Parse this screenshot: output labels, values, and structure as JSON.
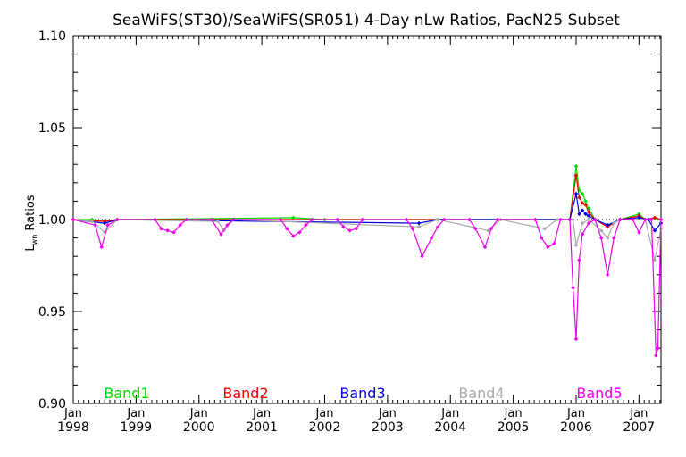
{
  "chart_data": {
    "type": "line",
    "title": "SeaWiFS(ST30)/SeaWiFS(SR051) 4-Day nLw Ratios, PacN25 Subset",
    "ylabel_main": "L",
    "ylabel_sub": "wn",
    "ylabel_rest": " Ratios",
    "xlim": [
      1998.0,
      2007.35
    ],
    "ylim": [
      0.9,
      1.1
    ],
    "y_ticks": [
      0.9,
      0.95,
      1.0,
      1.05,
      1.1
    ],
    "y_tick_labels": [
      "0.90",
      "0.95",
      "1.00",
      "1.05",
      "1.10"
    ],
    "x_ticks": [
      {
        "pos": 1998,
        "month": "Jan",
        "year": "1998"
      },
      {
        "pos": 1999,
        "month": "Jan",
        "year": "1999"
      },
      {
        "pos": 2000,
        "month": "Jan",
        "year": "2000"
      },
      {
        "pos": 2001,
        "month": "Jan",
        "year": "2001"
      },
      {
        "pos": 2002,
        "month": "Jan",
        "year": "2002"
      },
      {
        "pos": 2003,
        "month": "Jan",
        "year": "2003"
      },
      {
        "pos": 2004,
        "month": "Jan",
        "year": "2004"
      },
      {
        "pos": 2005,
        "month": "Jan",
        "year": "2005"
      },
      {
        "pos": 2006,
        "month": "Jan",
        "year": "2006"
      },
      {
        "pos": 2007,
        "month": "Jan",
        "year": "2007"
      }
    ],
    "reference_line": 1.0,
    "legend": [
      {
        "label": "Band1",
        "color": "#00dd00"
      },
      {
        "label": "Band2",
        "color": "#ee0000"
      },
      {
        "label": "Band3",
        "color": "#0000dd"
      },
      {
        "label": "Band4",
        "color": "#aaaaaa"
      },
      {
        "label": "Band5",
        "color": "#ee00ee"
      }
    ],
    "series": [
      {
        "name": "Band1",
        "color": "#00dd00",
        "points": [
          [
            1998.0,
            1.0
          ],
          [
            1998.3,
            1.0
          ],
          [
            1998.5,
            0.999
          ],
          [
            1998.7,
            1.0
          ],
          [
            2001.5,
            1.001
          ],
          [
            2002.0,
            1.0
          ],
          [
            2005.9,
            1.0
          ],
          [
            2006.0,
            1.029
          ],
          [
            2006.05,
            1.016
          ],
          [
            2006.1,
            1.014
          ],
          [
            2006.15,
            1.01
          ],
          [
            2006.2,
            1.006
          ],
          [
            2006.3,
            1.0
          ],
          [
            2006.5,
            0.997
          ],
          [
            2006.7,
            1.0
          ],
          [
            2007.0,
            1.003
          ],
          [
            2007.1,
            1.0
          ],
          [
            2007.35,
            1.0
          ]
        ]
      },
      {
        "name": "Band2",
        "color": "#ee0000",
        "points": [
          [
            1998.0,
            1.0
          ],
          [
            1998.5,
            0.999
          ],
          [
            1998.7,
            1.0
          ],
          [
            2005.9,
            1.0
          ],
          [
            2006.0,
            1.024
          ],
          [
            2006.05,
            1.012
          ],
          [
            2006.1,
            1.009
          ],
          [
            2006.15,
            1.008
          ],
          [
            2006.2,
            1.004
          ],
          [
            2006.3,
            1.0
          ],
          [
            2006.5,
            0.996
          ],
          [
            2006.7,
            1.0
          ],
          [
            2007.0,
            1.002
          ],
          [
            2007.1,
            1.0
          ],
          [
            2007.25,
            1.001
          ],
          [
            2007.35,
            1.0
          ]
        ]
      },
      {
        "name": "Band3",
        "color": "#0000dd",
        "points": [
          [
            1998.0,
            1.0
          ],
          [
            1998.5,
            0.998
          ],
          [
            1998.7,
            1.0
          ],
          [
            2003.5,
            0.998
          ],
          [
            2003.8,
            1.0
          ],
          [
            2005.9,
            1.0
          ],
          [
            2006.0,
            1.014
          ],
          [
            2006.05,
            1.003
          ],
          [
            2006.1,
            1.005
          ],
          [
            2006.15,
            1.003
          ],
          [
            2006.2,
            1.002
          ],
          [
            2006.3,
            1.0
          ],
          [
            2006.5,
            0.997
          ],
          [
            2006.7,
            1.0
          ],
          [
            2007.0,
            1.001
          ],
          [
            2007.15,
            1.0
          ],
          [
            2007.25,
            0.994
          ],
          [
            2007.35,
            0.998
          ]
        ]
      },
      {
        "name": "Band4",
        "color": "#aaaaaa",
        "points": [
          [
            1998.0,
            1.0
          ],
          [
            1998.3,
            0.999
          ],
          [
            1998.5,
            0.993
          ],
          [
            1998.7,
            1.0
          ],
          [
            2000.3,
            0.999
          ],
          [
            2000.4,
            0.994
          ],
          [
            2000.55,
            1.0
          ],
          [
            2003.5,
            0.996
          ],
          [
            2003.8,
            1.0
          ],
          [
            2004.6,
            0.994
          ],
          [
            2004.8,
            1.0
          ],
          [
            2005.5,
            0.995
          ],
          [
            2005.7,
            1.0
          ],
          [
            2005.95,
            1.0
          ],
          [
            2006.0,
            0.986
          ],
          [
            2006.1,
            0.998
          ],
          [
            2006.2,
            1.0
          ],
          [
            2006.4,
            0.994
          ],
          [
            2006.5,
            0.99
          ],
          [
            2006.6,
            0.998
          ],
          [
            2006.7,
            1.0
          ],
          [
            2007.1,
            1.0
          ],
          [
            2007.25,
            0.978
          ],
          [
            2007.35,
            0.995
          ]
        ]
      },
      {
        "name": "Band5",
        "color": "#ee00ee",
        "points": [
          [
            1998.0,
            1.0
          ],
          [
            1998.35,
            0.997
          ],
          [
            1998.45,
            0.985
          ],
          [
            1998.55,
            0.997
          ],
          [
            1998.7,
            1.0
          ],
          [
            1999.3,
            1.0
          ],
          [
            1999.4,
            0.995
          ],
          [
            1999.5,
            0.994
          ],
          [
            1999.6,
            0.993
          ],
          [
            1999.7,
            0.997
          ],
          [
            1999.8,
            1.0
          ],
          [
            2000.2,
            1.0
          ],
          [
            2000.35,
            0.992
          ],
          [
            2000.45,
            0.997
          ],
          [
            2000.55,
            1.0
          ],
          [
            2001.3,
            1.0
          ],
          [
            2001.4,
            0.995
          ],
          [
            2001.5,
            0.991
          ],
          [
            2001.6,
            0.993
          ],
          [
            2001.7,
            0.997
          ],
          [
            2001.8,
            1.0
          ],
          [
            2002.2,
            1.0
          ],
          [
            2002.3,
            0.996
          ],
          [
            2002.4,
            0.994
          ],
          [
            2002.5,
            0.995
          ],
          [
            2002.6,
            1.0
          ],
          [
            2003.3,
            1.0
          ],
          [
            2003.4,
            0.995
          ],
          [
            2003.55,
            0.98
          ],
          [
            2003.7,
            0.99
          ],
          [
            2003.8,
            0.996
          ],
          [
            2003.9,
            1.0
          ],
          [
            2004.3,
            1.0
          ],
          [
            2004.4,
            0.995
          ],
          [
            2004.55,
            0.985
          ],
          [
            2004.65,
            0.995
          ],
          [
            2004.75,
            1.0
          ],
          [
            2005.35,
            1.0
          ],
          [
            2005.45,
            0.99
          ],
          [
            2005.55,
            0.985
          ],
          [
            2005.65,
            0.987
          ],
          [
            2005.75,
            1.0
          ],
          [
            2005.9,
            1.0
          ],
          [
            2005.95,
            0.963
          ],
          [
            2006.0,
            0.935
          ],
          [
            2006.05,
            0.978
          ],
          [
            2006.1,
            0.992
          ],
          [
            2006.2,
            0.998
          ],
          [
            2006.3,
            1.0
          ],
          [
            2006.4,
            0.99
          ],
          [
            2006.5,
            0.97
          ],
          [
            2006.6,
            0.99
          ],
          [
            2006.7,
            1.0
          ],
          [
            2006.9,
            1.0
          ],
          [
            2007.0,
            0.993
          ],
          [
            2007.1,
            1.0
          ],
          [
            2007.2,
            1.0
          ],
          [
            2007.27,
            0.926
          ],
          [
            2007.3,
            0.93
          ],
          [
            2007.35,
            1.0
          ]
        ]
      }
    ]
  }
}
